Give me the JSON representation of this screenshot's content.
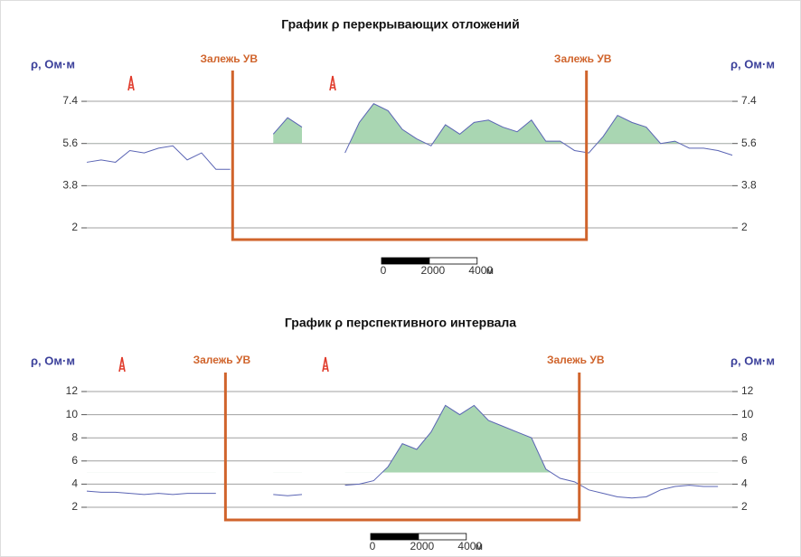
{
  "chart_data": [
    {
      "type": "line",
      "title": "График ρ перекрывающих отложений",
      "y_label": "ρ, Ом·м",
      "xlim": [
        0,
        27000
      ],
      "ylim": [
        2,
        8
      ],
      "yticks": [
        2,
        3.8,
        5.6,
        7.4
      ],
      "grid": true,
      "x": [
        0,
        600,
        1200,
        1800,
        2400,
        3000,
        3600,
        4200,
        4800,
        5400,
        6000,
        6600,
        7200,
        7800,
        8400,
        9000,
        9600,
        10200,
        10800,
        11400,
        12000,
        12600,
        13200,
        13800,
        14400,
        15000,
        15600,
        16200,
        16800,
        17400,
        18000,
        18600,
        19200,
        19800,
        20400,
        21000,
        21600,
        22200,
        22800,
        23400,
        24000,
        24600,
        25200,
        25800,
        26400,
        27000
      ],
      "series": [
        {
          "color": "#5a64b4",
          "fill_color": "#a9d6b2",
          "fill_threshold": 5.6,
          "values": [
            4.8,
            4.9,
            4.8,
            5.3,
            5.2,
            5.4,
            5.5,
            4.9,
            5.2,
            4.5,
            4.5,
            null,
            null,
            6.0,
            6.7,
            6.3,
            null,
            null,
            5.2,
            6.5,
            7.3,
            7.0,
            6.2,
            5.8,
            5.5,
            6.4,
            6.0,
            6.5,
            6.6,
            6.3,
            6.1,
            6.6,
            5.7,
            5.7,
            5.3,
            5.2,
            5.9,
            6.8,
            6.5,
            6.3,
            5.6,
            5.7,
            5.4,
            5.4,
            5.3,
            5.1
          ]
        }
      ],
      "deposit": {
        "label": "Залежь УВ",
        "x": [
          6100,
          20900
        ]
      },
      "scale_bar": {
        "ticks": [
          0,
          2000,
          4000
        ],
        "unit": "м"
      }
    },
    {
      "type": "line",
      "title": "График ρ перспективного интервала",
      "y_label": "ρ, Ом·м",
      "xlim": [
        0,
        27000
      ],
      "ylim": [
        2,
        12
      ],
      "yticks": [
        2,
        4,
        6,
        8,
        10,
        12
      ],
      "grid": true,
      "x": [
        0,
        600,
        1200,
        1800,
        2400,
        3000,
        3600,
        4200,
        4800,
        5400,
        6000,
        6600,
        7200,
        7800,
        8400,
        9000,
        9600,
        10200,
        10800,
        11400,
        12000,
        12600,
        13200,
        13800,
        14400,
        15000,
        15600,
        16200,
        16800,
        17400,
        18000,
        18600,
        19200,
        19800,
        20400,
        21000,
        21600,
        22200,
        22800,
        23400,
        24000,
        24600,
        25200,
        25800,
        26400,
        27000
      ],
      "series": [
        {
          "color": "#5a64b4",
          "fill_color": "#a9d6b2",
          "fill_threshold": 5.0,
          "values": [
            3.4,
            3.3,
            3.3,
            3.2,
            3.1,
            3.2,
            3.1,
            3.2,
            3.2,
            3.2,
            null,
            null,
            null,
            3.1,
            3.0,
            3.1,
            null,
            null,
            3.9,
            4.0,
            4.3,
            5.5,
            7.5,
            7.0,
            8.5,
            10.8,
            10.0,
            10.8,
            9.5,
            9.0,
            8.5,
            8.0,
            5.3,
            4.5,
            4.2,
            3.5,
            3.2,
            2.9,
            2.8,
            2.9,
            3.5,
            3.8,
            3.9,
            3.8,
            3.8,
            null
          ]
        }
      ],
      "deposit": {
        "label": "Залежь УВ",
        "x": [
          5800,
          20600
        ]
      },
      "scale_bar": {
        "ticks": [
          0,
          2000,
          4000
        ],
        "unit": "м"
      }
    }
  ]
}
